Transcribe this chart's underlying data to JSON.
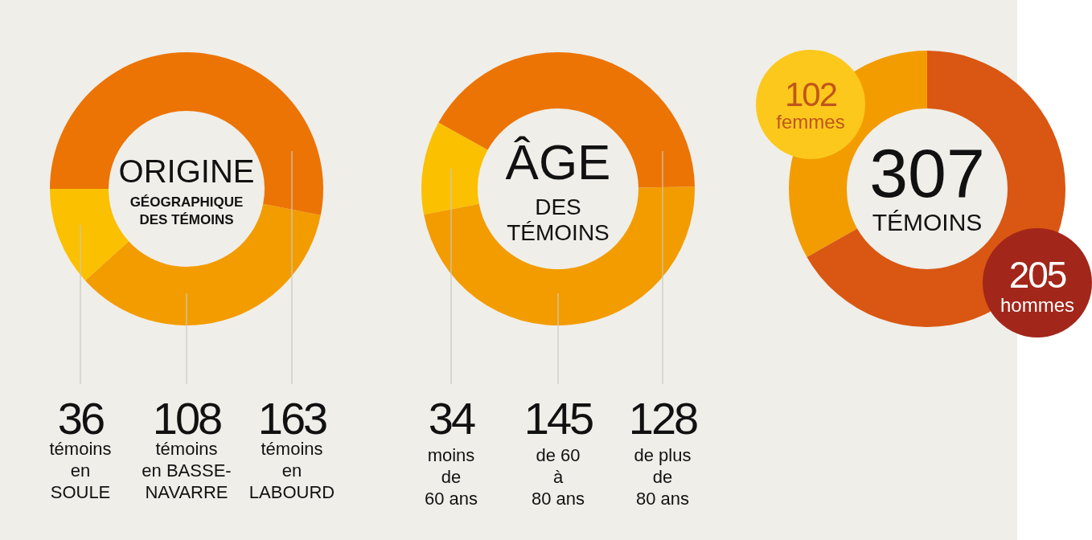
{
  "chart_data": [
    {
      "type": "donut",
      "title": "ORIGINE",
      "subtitle": "GÉOGRAPHIQUE\nDES TÉMOINS",
      "categories": [
        "témoins\nen\nSOULE",
        "témoins\nen BASSE-\nNAVARRE",
        "témoins\nen\nLABOURD"
      ],
      "values": [
        36,
        108,
        163
      ],
      "colors": [
        "#fbc000",
        "#f39c00",
        "#ec7404"
      ],
      "data_labels": true
    },
    {
      "type": "donut",
      "title": "ÂGE",
      "subtitle": "DES\nTÉMOINS",
      "categories": [
        "moins\nde\n60 ans",
        "de 60\nà\n80 ans",
        "de plus\nde\n80 ans"
      ],
      "values": [
        34,
        145,
        128
      ],
      "colors": [
        "#fbc000",
        "#f39c00",
        "#ec7404"
      ],
      "data_labels": true
    },
    {
      "type": "donut",
      "title": "307",
      "subtitle": "TÉMOINS",
      "categories": [
        "femmes",
        "hommes"
      ],
      "values": [
        102,
        205
      ],
      "colors": [
        "#f39c00",
        "#d95712"
      ],
      "data_labels": true
    }
  ]
}
